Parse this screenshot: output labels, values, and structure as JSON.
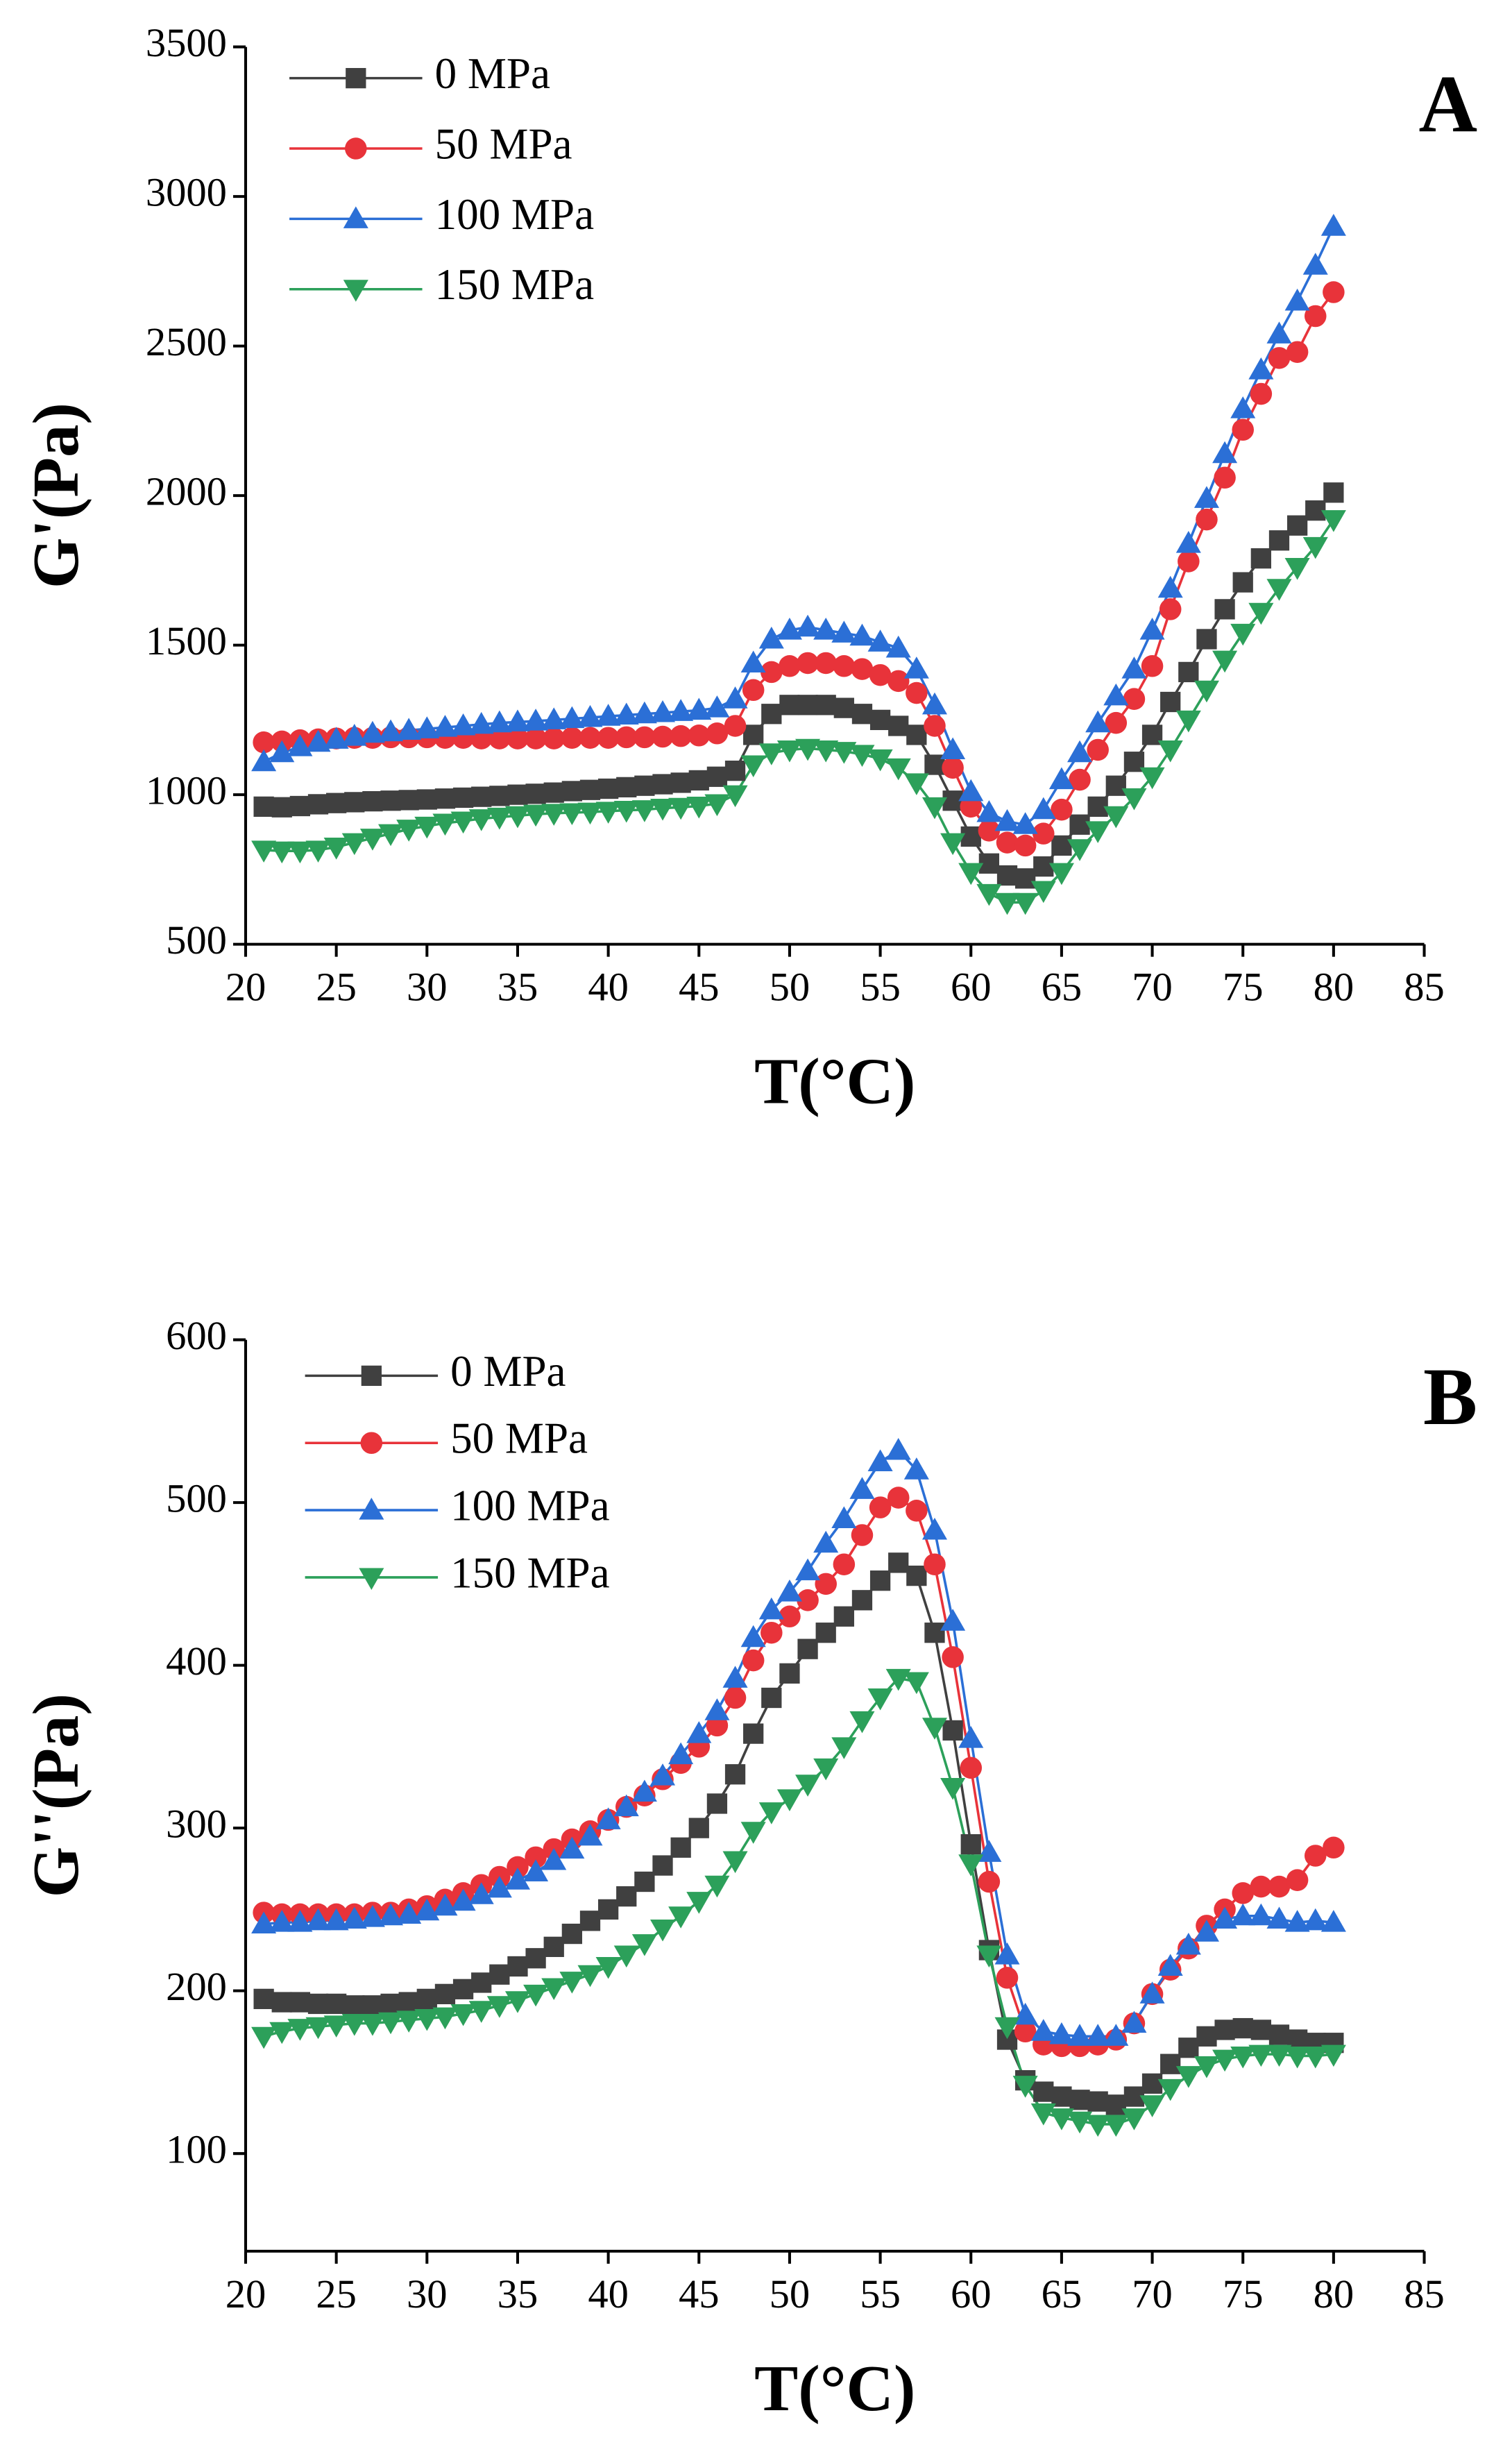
{
  "chart_data": [
    {
      "type": "line",
      "annotation": "A",
      "y_label": "G'(Pa)",
      "x_label": "T(°C)",
      "xlim": [
        20,
        85
      ],
      "xticks": [
        20,
        25,
        30,
        35,
        40,
        45,
        50,
        55,
        60,
        65,
        70,
        75,
        80,
        85
      ],
      "ylim": [
        500,
        3500
      ],
      "yticks": [
        500,
        1000,
        1500,
        2000,
        2500,
        3000,
        3500
      ],
      "legend": "upper left",
      "x": [
        21,
        22,
        23,
        24,
        25,
        26,
        27,
        28,
        29,
        30,
        31,
        32,
        33,
        34,
        35,
        36,
        37,
        38,
        39,
        40,
        41,
        42,
        43,
        44,
        45,
        46,
        47,
        48,
        49,
        50,
        51,
        52,
        53,
        54,
        55,
        56,
        57,
        58,
        59,
        60,
        61,
        62,
        63,
        64,
        65,
        66,
        67,
        68,
        69,
        70,
        71,
        72,
        73,
        74,
        75,
        76,
        77,
        78,
        79,
        80
      ],
      "series": [
        {
          "name": "0 MPa",
          "color": "#404040",
          "marker": "square",
          "values": [
            960,
            958,
            962,
            968,
            972,
            975,
            978,
            980,
            982,
            984,
            987,
            990,
            993,
            996,
            1000,
            1003,
            1007,
            1012,
            1016,
            1020,
            1025,
            1030,
            1035,
            1040,
            1048,
            1060,
            1080,
            1200,
            1270,
            1300,
            1300,
            1300,
            1290,
            1270,
            1250,
            1230,
            1200,
            1100,
            980,
            860,
            770,
            730,
            720,
            760,
            830,
            900,
            960,
            1030,
            1110,
            1200,
            1310,
            1410,
            1520,
            1620,
            1710,
            1790,
            1850,
            1900,
            1950,
            2010
          ]
        },
        {
          "name": "50 MPa",
          "color": "#e8333a",
          "marker": "circle",
          "values": [
            1175,
            1178,
            1182,
            1185,
            1188,
            1190,
            1190,
            1192,
            1192,
            1192,
            1190,
            1190,
            1188,
            1188,
            1188,
            1188,
            1188,
            1190,
            1190,
            1190,
            1192,
            1192,
            1194,
            1196,
            1198,
            1205,
            1230,
            1350,
            1410,
            1430,
            1440,
            1440,
            1430,
            1420,
            1400,
            1380,
            1340,
            1230,
            1090,
            960,
            880,
            840,
            830,
            870,
            950,
            1050,
            1150,
            1240,
            1320,
            1430,
            1620,
            1780,
            1920,
            2060,
            2220,
            2340,
            2460,
            2480,
            2600,
            2680
          ]
        },
        {
          "name": "100 MPa",
          "color": "#2b6fd6",
          "marker": "triangle-up",
          "values": [
            1110,
            1140,
            1160,
            1175,
            1185,
            1195,
            1205,
            1210,
            1215,
            1220,
            1225,
            1230,
            1235,
            1240,
            1243,
            1246,
            1250,
            1254,
            1258,
            1262,
            1266,
            1270,
            1274,
            1278,
            1282,
            1290,
            1320,
            1440,
            1520,
            1550,
            1560,
            1550,
            1540,
            1530,
            1510,
            1490,
            1420,
            1300,
            1150,
            1010,
            940,
            910,
            900,
            950,
            1050,
            1140,
            1240,
            1330,
            1420,
            1550,
            1690,
            1840,
            1990,
            2140,
            2290,
            2420,
            2540,
            2650,
            2770,
            2900
          ]
        },
        {
          "name": "150 MPa",
          "color": "#2ca05a",
          "marker": "triangle-down",
          "values": [
            815,
            812,
            812,
            815,
            825,
            840,
            855,
            870,
            885,
            895,
            905,
            912,
            920,
            925,
            930,
            935,
            938,
            940,
            942,
            945,
            948,
            950,
            955,
            958,
            962,
            970,
            1000,
            1100,
            1140,
            1150,
            1155,
            1150,
            1145,
            1135,
            1120,
            1090,
            1040,
            960,
            840,
            740,
            670,
            640,
            640,
            680,
            740,
            820,
            880,
            930,
            990,
            1060,
            1150,
            1250,
            1350,
            1450,
            1540,
            1610,
            1690,
            1760,
            1830,
            1920
          ]
        }
      ]
    },
    {
      "type": "line",
      "annotation": "B",
      "y_label": "G''(Pa)",
      "x_label": "T(°C)",
      "xlim": [
        20,
        85
      ],
      "xticks": [
        20,
        25,
        30,
        35,
        40,
        45,
        50,
        55,
        60,
        65,
        70,
        75,
        80,
        85
      ],
      "ylim": [
        40,
        600
      ],
      "yticks": [
        100,
        200,
        300,
        400,
        500,
        600
      ],
      "legend": "upper left",
      "x": [
        21,
        22,
        23,
        24,
        25,
        26,
        27,
        28,
        29,
        30,
        31,
        32,
        33,
        34,
        35,
        36,
        37,
        38,
        39,
        40,
        41,
        42,
        43,
        44,
        45,
        46,
        47,
        48,
        49,
        50,
        51,
        52,
        53,
        54,
        55,
        56,
        57,
        58,
        59,
        60,
        61,
        62,
        63,
        64,
        65,
        66,
        67,
        68,
        69,
        70,
        71,
        72,
        73,
        74,
        75,
        76,
        77,
        78,
        79,
        80
      ],
      "series": [
        {
          "name": "0 MPa",
          "color": "#404040",
          "marker": "square",
          "values": [
            195,
            193,
            193,
            192,
            192,
            191,
            191,
            192,
            193,
            195,
            198,
            201,
            205,
            210,
            215,
            220,
            227,
            235,
            243,
            250,
            258,
            267,
            277,
            288,
            300,
            315,
            333,
            358,
            380,
            395,
            410,
            420,
            430,
            440,
            452,
            463,
            455,
            420,
            360,
            290,
            225,
            170,
            145,
            138,
            135,
            133,
            132,
            130,
            135,
            143,
            155,
            165,
            172,
            176,
            177,
            176,
            173,
            170,
            168,
            168
          ]
        },
        {
          "name": "50 MPa",
          "color": "#e8333a",
          "marker": "circle",
          "values": [
            248,
            247,
            247,
            247,
            247,
            247,
            248,
            248,
            250,
            252,
            256,
            260,
            265,
            270,
            276,
            282,
            287,
            293,
            298,
            305,
            313,
            320,
            330,
            340,
            350,
            363,
            380,
            403,
            420,
            430,
            440,
            450,
            462,
            480,
            497,
            503,
            495,
            462,
            405,
            337,
            267,
            208,
            175,
            167,
            166,
            166,
            167,
            170,
            180,
            198,
            213,
            226,
            240,
            250,
            260,
            264,
            264,
            268,
            283,
            288
          ]
        },
        {
          "name": "100 MPa",
          "color": "#2b6fd6",
          "marker": "triangle-up",
          "values": [
            241,
            242,
            242,
            243,
            243,
            244,
            245,
            246,
            247,
            249,
            252,
            255,
            259,
            263,
            268,
            273,
            280,
            287,
            295,
            305,
            313,
            322,
            332,
            345,
            358,
            372,
            392,
            417,
            434,
            445,
            458,
            475,
            490,
            508,
            525,
            532,
            520,
            483,
            427,
            355,
            285,
            222,
            185,
            175,
            173,
            172,
            172,
            172,
            180,
            198,
            215,
            228,
            236,
            244,
            246,
            246,
            244,
            242,
            243,
            242
          ]
        },
        {
          "name": "150 MPa",
          "color": "#2ca05a",
          "marker": "triangle-down",
          "values": [
            172,
            175,
            177,
            178,
            179,
            180,
            180,
            181,
            182,
            183,
            184,
            186,
            188,
            191,
            194,
            198,
            202,
            206,
            210,
            215,
            222,
            229,
            238,
            246,
            255,
            265,
            280,
            298,
            310,
            318,
            327,
            337,
            350,
            366,
            380,
            392,
            390,
            362,
            325,
            278,
            222,
            178,
            142,
            125,
            122,
            120,
            118,
            118,
            122,
            130,
            140,
            148,
            154,
            158,
            160,
            161,
            161,
            160,
            160,
            161
          ]
        }
      ]
    }
  ]
}
